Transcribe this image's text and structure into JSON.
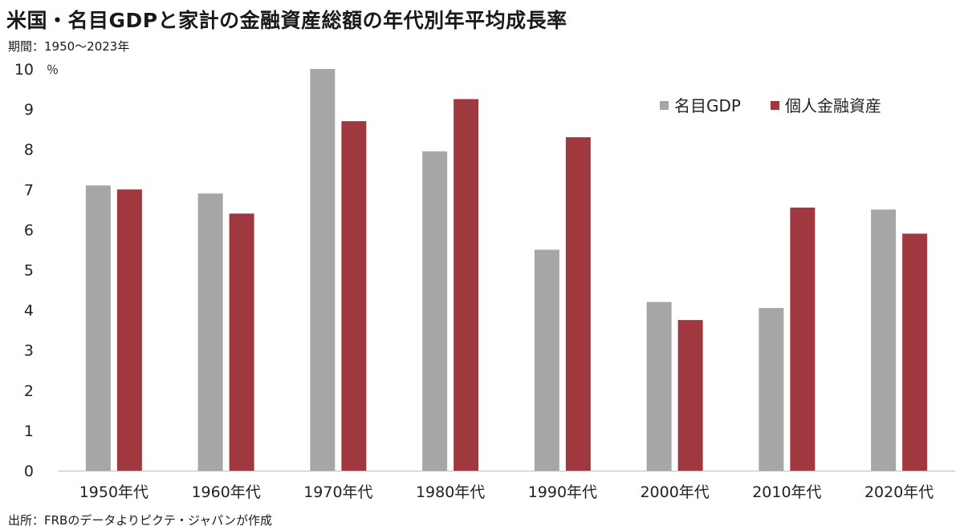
{
  "header": {
    "title": "米国・名目GDPと家計の金融資産総額の年代別年平均成長率",
    "subtitle": "期間：1950～2023年"
  },
  "footer": {
    "source": "出所：FRBのデータよりピクテ・ジャパンが作成"
  },
  "chart_data": {
    "type": "bar",
    "title": "米国・名目GDPと家計の金融資産総額の年代別年平均成長率",
    "subtitle": "期間：1950～2023年",
    "ylabel": "％",
    "xlabel": "",
    "ylim": [
      0,
      10
    ],
    "yticks": [
      0,
      1,
      2,
      3,
      4,
      5,
      6,
      7,
      8,
      9,
      10
    ],
    "grid": false,
    "legend_position": "top-right",
    "categories": [
      "1950年代",
      "1960年代",
      "1970年代",
      "1980年代",
      "1990年代",
      "2000年代",
      "2010年代",
      "2020年代"
    ],
    "series": [
      {
        "name": "名目GDP",
        "color": "#a6a6a6",
        "values": [
          7.1,
          6.9,
          10.0,
          7.95,
          5.5,
          4.2,
          4.05,
          6.5
        ]
      },
      {
        "name": "個人金融資産",
        "color": "#a0393f",
        "values": [
          7.0,
          6.4,
          8.7,
          9.25,
          8.3,
          3.75,
          6.55,
          5.9
        ]
      }
    ]
  }
}
